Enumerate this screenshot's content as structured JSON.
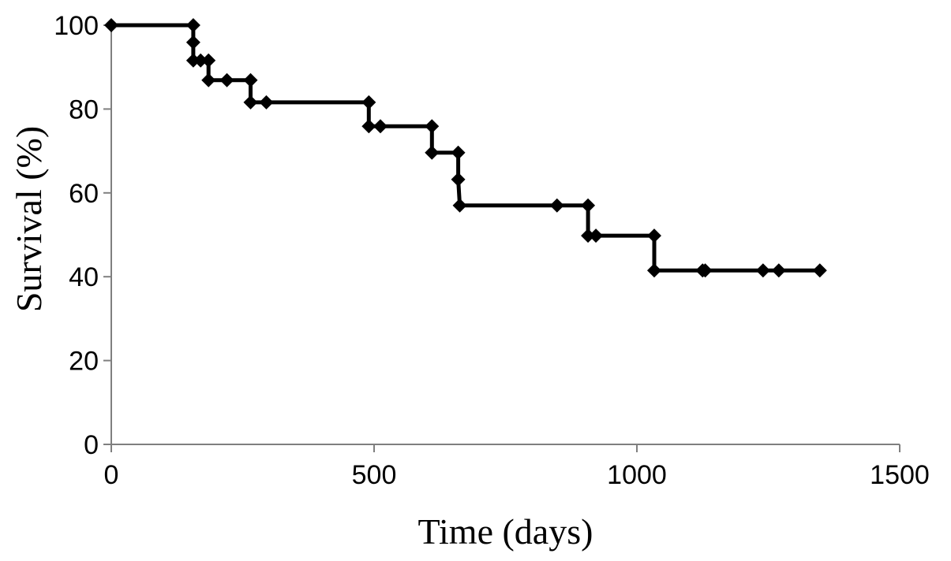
{
  "chart_data": {
    "type": "line",
    "title": "",
    "xlabel": "Time (days)",
    "ylabel": "Survival (%)",
    "xlim": [
      0,
      1500
    ],
    "ylim": [
      0,
      100
    ],
    "x_ticks": [
      0,
      500,
      1000,
      1500
    ],
    "y_ticks": [
      0,
      20,
      40,
      60,
      80,
      100
    ],
    "x_tick_labels": [
      "0",
      "500",
      "1000",
      "1500"
    ],
    "y_tick_labels": [
      "0",
      "20",
      "40",
      "60",
      "80",
      "100"
    ],
    "step": true,
    "grid": false,
    "legend": "none",
    "line_color": "#000000",
    "axis_color": "#7f7f7f",
    "marker": "diamond",
    "series": [
      {
        "points": [
          {
            "x": 0,
            "y": 100
          },
          {
            "x": 156,
            "y": 100
          },
          {
            "x": 156,
            "y": 95.9
          },
          {
            "x": 156,
            "y": 91.6
          },
          {
            "x": 170,
            "y": 91.6
          },
          {
            "x": 185,
            "y": 91.6
          },
          {
            "x": 185,
            "y": 86.9
          },
          {
            "x": 220,
            "y": 86.9
          },
          {
            "x": 265,
            "y": 86.9
          },
          {
            "x": 265,
            "y": 81.6
          },
          {
            "x": 295,
            "y": 81.6
          },
          {
            "x": 490,
            "y": 81.6
          },
          {
            "x": 490,
            "y": 75.9
          },
          {
            "x": 512,
            "y": 75.9
          },
          {
            "x": 610,
            "y": 75.9
          },
          {
            "x": 610,
            "y": 69.6
          },
          {
            "x": 660,
            "y": 69.6
          },
          {
            "x": 660,
            "y": 63.2
          },
          {
            "x": 663,
            "y": 57
          },
          {
            "x": 848,
            "y": 57
          },
          {
            "x": 907,
            "y": 57
          },
          {
            "x": 907,
            "y": 49.8
          },
          {
            "x": 922,
            "y": 49.8
          },
          {
            "x": 1033,
            "y": 49.8
          },
          {
            "x": 1033,
            "y": 41.5
          },
          {
            "x": 1125,
            "y": 41.5
          },
          {
            "x": 1130,
            "y": 41.5
          },
          {
            "x": 1240,
            "y": 41.5
          },
          {
            "x": 1270,
            "y": 41.5
          },
          {
            "x": 1348,
            "y": 41.5
          }
        ]
      }
    ]
  }
}
